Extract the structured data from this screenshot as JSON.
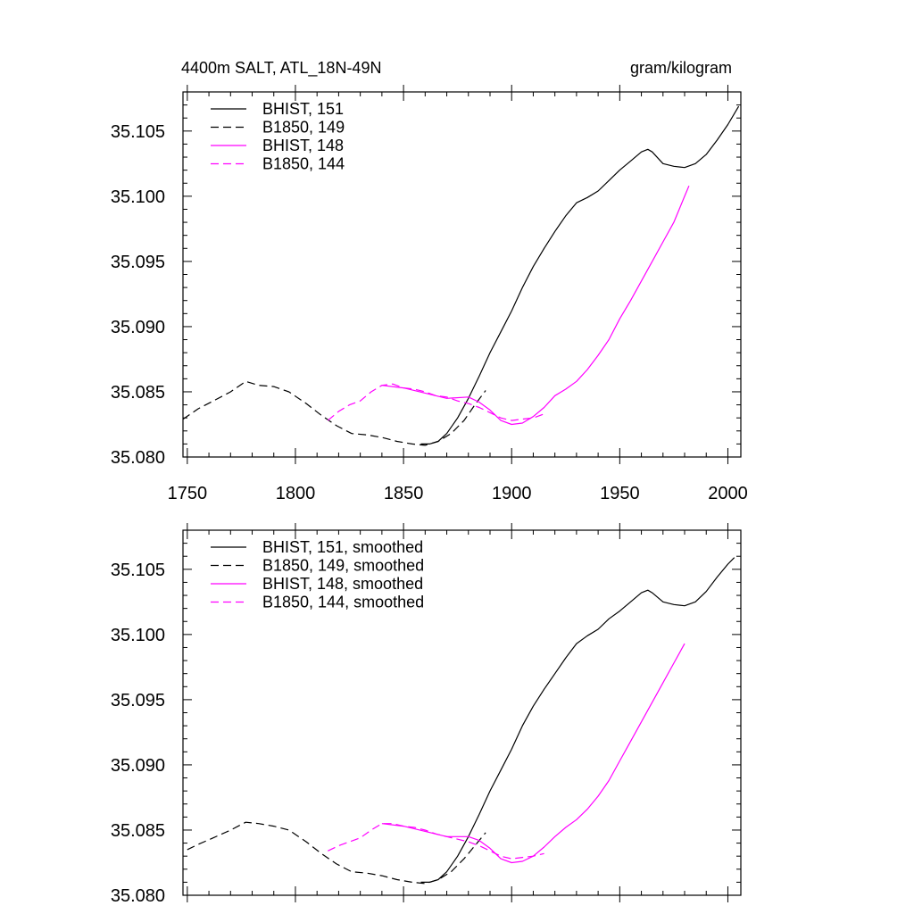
{
  "figure": {
    "title_left": "4400m SALT, ATL_18N-49N",
    "title_right": "gram/kilogram"
  },
  "colors": {
    "black": "#000000",
    "magenta": "#ff00ff"
  },
  "chart_data": [
    {
      "type": "line",
      "xlim": [
        1748,
        2006
      ],
      "ylim": [
        35.08,
        35.108
      ],
      "xticks": [
        1750,
        1800,
        1850,
        1900,
        1950,
        2000
      ],
      "xtick_labels": [
        "1750",
        "1800",
        "1850",
        "1900",
        "1950",
        "2000"
      ],
      "yticks": [
        35.08,
        35.085,
        35.09,
        35.095,
        35.1,
        35.105
      ],
      "ytick_labels": [
        "35.080",
        "35.085",
        "35.090",
        "35.095",
        "35.100",
        "35.105"
      ],
      "series": [
        {
          "name": "BHIST, 151",
          "color": "#000000",
          "dash": "solid",
          "x": [
            1858,
            1862,
            1866,
            1870,
            1875,
            1880,
            1885,
            1890,
            1895,
            1900,
            1905,
            1910,
            1915,
            1920,
            1925,
            1930,
            1935,
            1940,
            1945,
            1950,
            1955,
            1960,
            1963,
            1965,
            1970,
            1975,
            1980,
            1985,
            1990,
            1995,
            2000,
            2005
          ],
          "y": [
            35.081,
            35.081,
            35.0812,
            35.0818,
            35.083,
            35.0845,
            35.0862,
            35.088,
            35.0896,
            35.0912,
            35.093,
            35.0946,
            35.096,
            35.0973,
            35.0985,
            35.0995,
            35.0999,
            35.1004,
            35.1012,
            35.102,
            35.1027,
            35.1034,
            35.1036,
            35.1034,
            35.1025,
            35.1023,
            35.1022,
            35.1025,
            35.1032,
            35.1043,
            35.1055,
            35.1069
          ]
        },
        {
          "name": "B1850, 149",
          "color": "#000000",
          "dash": "dashed",
          "x": [
            1748,
            1755,
            1762,
            1770,
            1777,
            1783,
            1790,
            1797,
            1805,
            1812,
            1819,
            1826,
            1833,
            1840,
            1847,
            1854,
            1860,
            1866,
            1872,
            1878,
            1883,
            1888
          ],
          "y": [
            35.0829,
            35.0837,
            35.0843,
            35.085,
            35.0858,
            35.0855,
            35.0854,
            35.085,
            35.0841,
            35.0832,
            35.0824,
            35.0818,
            35.0817,
            35.0815,
            35.0812,
            35.081,
            35.0809,
            35.0812,
            35.0818,
            35.0828,
            35.084,
            35.0851
          ]
        },
        {
          "name": "BHIST, 148",
          "color": "#ff00ff",
          "dash": "solid",
          "x": [
            1840,
            1850,
            1860,
            1870,
            1880,
            1885,
            1890,
            1895,
            1900,
            1905,
            1910,
            1915,
            1920,
            1925,
            1930,
            1935,
            1940,
            1945,
            1950,
            1955,
            1960,
            1965,
            1970,
            1975,
            1980,
            1982
          ],
          "y": [
            35.0855,
            35.0853,
            35.0849,
            35.0845,
            35.0846,
            35.0842,
            35.0836,
            35.0828,
            35.0825,
            35.0826,
            35.0831,
            35.0838,
            35.0847,
            35.0852,
            35.0858,
            35.0867,
            35.0878,
            35.089,
            35.0906,
            35.092,
            35.0935,
            35.095,
            35.0965,
            35.098,
            35.1,
            35.1008
          ]
        },
        {
          "name": "B1850, 144",
          "color": "#ff00ff",
          "dash": "dashed",
          "x": [
            1815,
            1820,
            1825,
            1830,
            1835,
            1840,
            1845,
            1850,
            1855,
            1860,
            1865,
            1870,
            1875,
            1880,
            1885,
            1890,
            1895,
            1900,
            1905,
            1910,
            1915
          ],
          "y": [
            35.0828,
            35.0835,
            35.084,
            35.0843,
            35.085,
            35.0855,
            35.0856,
            35.0853,
            35.0852,
            35.085,
            35.0847,
            35.0846,
            35.0843,
            35.0841,
            35.0838,
            35.0834,
            35.083,
            35.0828,
            35.0829,
            35.083,
            35.0833
          ]
        }
      ]
    },
    {
      "type": "line",
      "xlim": [
        1748,
        2006
      ],
      "ylim": [
        35.08,
        35.108
      ],
      "xticks": [
        1750,
        1800,
        1850,
        1900,
        1950,
        2000
      ],
      "xtick_labels": [],
      "yticks": [
        35.08,
        35.085,
        35.09,
        35.095,
        35.1,
        35.105
      ],
      "ytick_labels": [
        "35.080",
        "35.085",
        "35.090",
        "35.095",
        "35.100",
        "35.105"
      ],
      "series": [
        {
          "name": "BHIST, 151, smoothed",
          "color": "#000000",
          "dash": "solid",
          "x": [
            1858,
            1862,
            1866,
            1870,
            1875,
            1880,
            1885,
            1890,
            1895,
            1900,
            1905,
            1910,
            1915,
            1920,
            1925,
            1930,
            1935,
            1940,
            1945,
            1950,
            1955,
            1960,
            1963,
            1965,
            1970,
            1975,
            1980,
            1985,
            1990,
            1995,
            2000,
            2003
          ],
          "y": [
            35.081,
            35.081,
            35.0812,
            35.0818,
            35.083,
            35.0845,
            35.0862,
            35.088,
            35.0896,
            35.0912,
            35.093,
            35.0945,
            35.0958,
            35.097,
            35.0982,
            35.0993,
            35.0999,
            35.1004,
            35.1012,
            35.1018,
            35.1025,
            35.1032,
            35.1034,
            35.1032,
            35.1025,
            35.1023,
            35.1022,
            35.1025,
            35.1033,
            35.1044,
            35.1054,
            35.1059
          ]
        },
        {
          "name": "B1850, 149, smoothed",
          "color": "#000000",
          "dash": "dashed",
          "x": [
            1750,
            1755,
            1762,
            1770,
            1777,
            1783,
            1790,
            1797,
            1805,
            1812,
            1819,
            1826,
            1833,
            1840,
            1847,
            1854,
            1860,
            1866,
            1872,
            1878,
            1883,
            1888
          ],
          "y": [
            35.0835,
            35.0839,
            35.0844,
            35.085,
            35.0856,
            35.0855,
            35.0853,
            35.085,
            35.0841,
            35.0832,
            35.0824,
            35.0818,
            35.0817,
            35.0815,
            35.0812,
            35.081,
            35.0809,
            35.0812,
            35.0818,
            35.0828,
            35.0838,
            35.0848
          ]
        },
        {
          "name": "BHIST, 148, smoothed",
          "color": "#ff00ff",
          "dash": "solid",
          "x": [
            1840,
            1850,
            1860,
            1870,
            1880,
            1885,
            1890,
            1895,
            1900,
            1905,
            1910,
            1915,
            1920,
            1925,
            1930,
            1935,
            1940,
            1945,
            1950,
            1955,
            1960,
            1965,
            1970,
            1975,
            1980
          ],
          "y": [
            35.0855,
            35.0853,
            35.0849,
            35.0845,
            35.0845,
            35.0842,
            35.0836,
            35.0828,
            35.0825,
            35.0826,
            35.083,
            35.0837,
            35.0845,
            35.0852,
            35.0858,
            35.0866,
            35.0876,
            35.0888,
            35.0903,
            35.0918,
            35.0933,
            35.0948,
            35.0963,
            35.0978,
            35.0993
          ]
        },
        {
          "name": "B1850, 144, smoothed",
          "color": "#ff00ff",
          "dash": "dashed",
          "x": [
            1815,
            1820,
            1825,
            1830,
            1835,
            1840,
            1845,
            1850,
            1855,
            1860,
            1865,
            1870,
            1875,
            1880,
            1885,
            1890,
            1895,
            1900,
            1905,
            1910,
            1915
          ],
          "y": [
            35.0834,
            35.0838,
            35.0841,
            35.0844,
            35.085,
            35.0855,
            35.0855,
            35.0853,
            35.0852,
            35.085,
            35.0847,
            35.0845,
            35.0843,
            35.0841,
            35.0838,
            35.0834,
            35.083,
            35.0828,
            35.0829,
            35.083,
            35.0832
          ]
        }
      ]
    }
  ]
}
